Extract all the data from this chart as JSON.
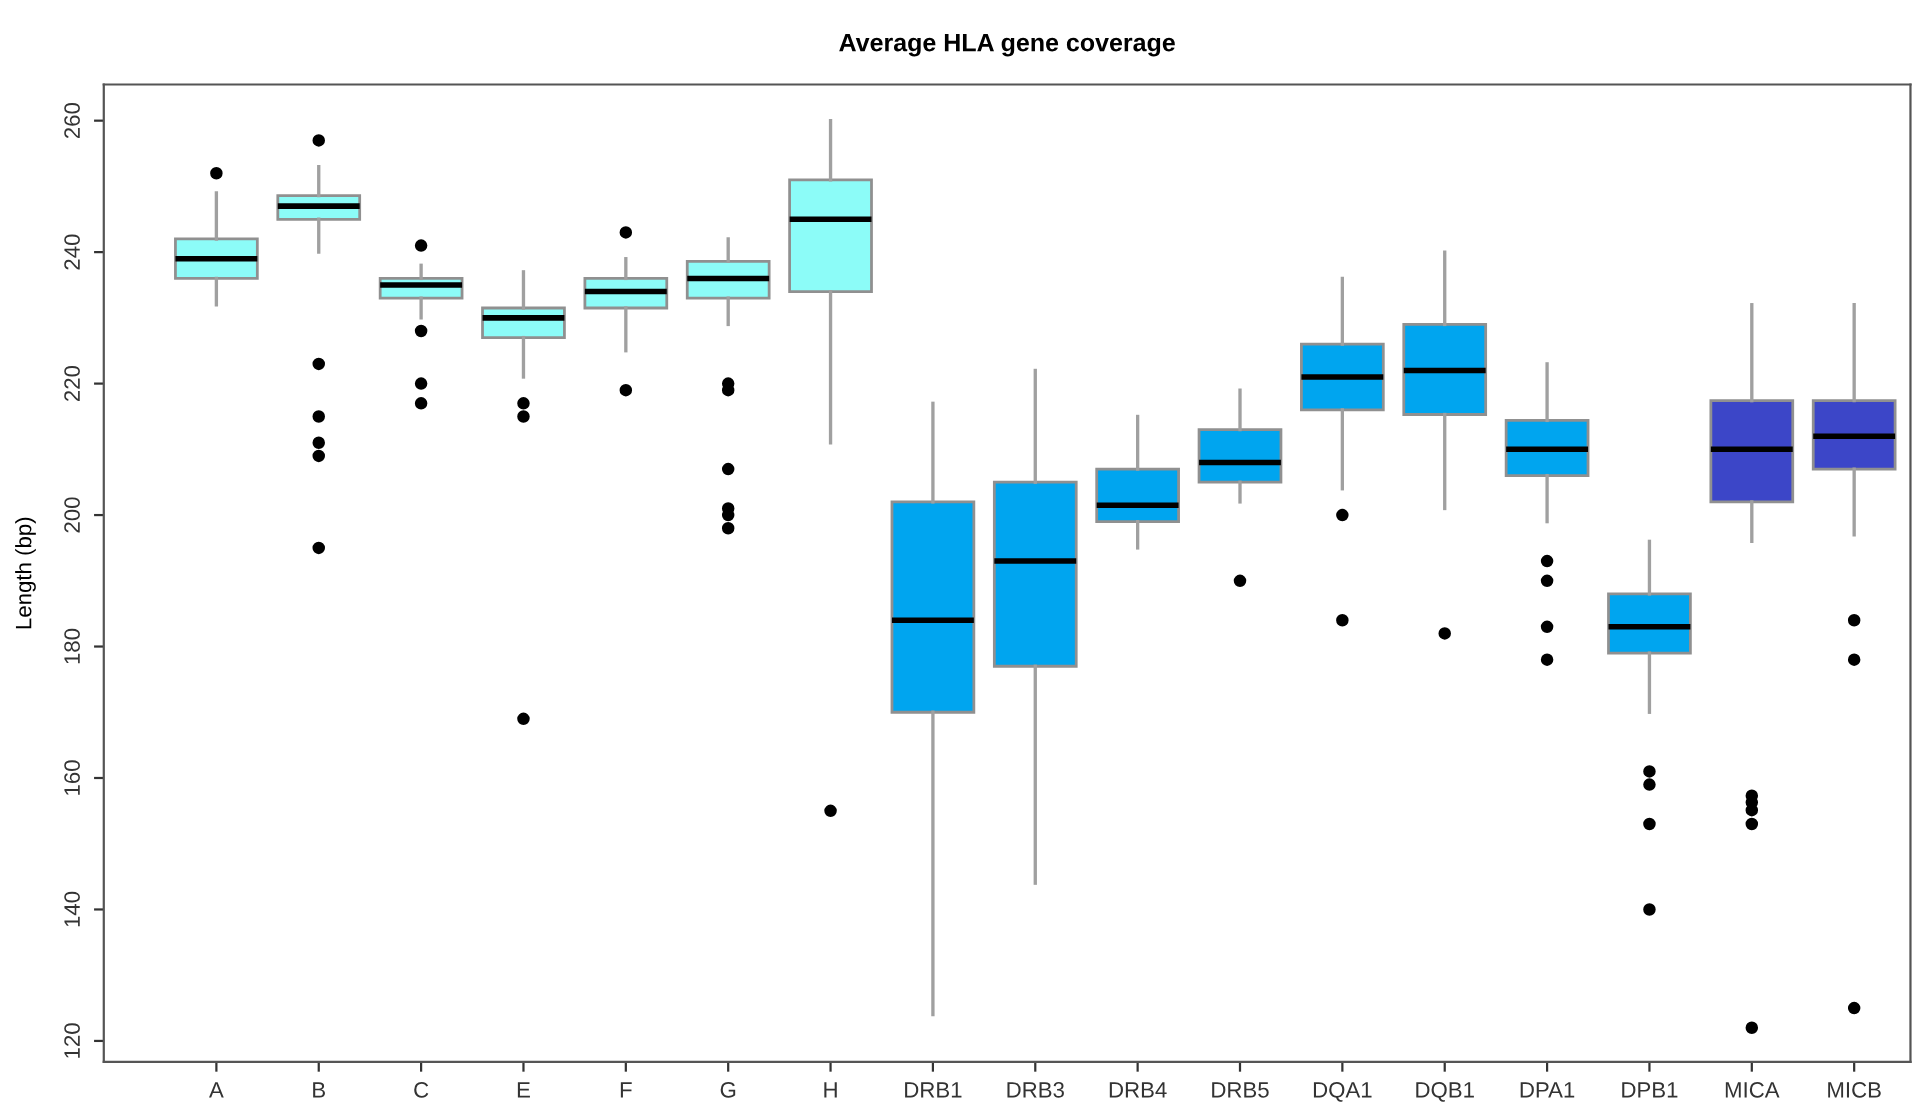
{
  "chart_data": {
    "type": "box",
    "title": "Average HLA gene coverage",
    "ylabel": "Length (bp)",
    "categories": [
      "A",
      "B",
      "C",
      "E",
      "F",
      "G",
      "H",
      "DRB1",
      "DRB3",
      "DRB4",
      "DRB5",
      "DQA1",
      "DQB1",
      "DPA1",
      "DPB1",
      "MICA",
      "MICB"
    ],
    "colors": [
      "#8cfcf8",
      "#8cfcf8",
      "#8cfcf8",
      "#8cfcf8",
      "#8cfcf8",
      "#8cfcf8",
      "#8cfcf8",
      "#00a5ef",
      "#00a5ef",
      "#00a5ef",
      "#00a5ef",
      "#00a5ef",
      "#00a5ef",
      "#00a5ef",
      "#00a5ef",
      "#3c46c8",
      "#3c46c8"
    ],
    "boxes": [
      {
        "low": 232,
        "q1": 236,
        "median": 239,
        "q3": 242,
        "high": 249,
        "outliers": [
          252
        ]
      },
      {
        "low": 240,
        "q1": 245,
        "median": 247,
        "q3": 248.6,
        "high": 253,
        "outliers": [
          257,
          223,
          215,
          211,
          209,
          195
        ]
      },
      {
        "low": 230,
        "q1": 233,
        "median": 235,
        "q3": 236,
        "high": 238,
        "outliers": [
          241,
          228,
          220,
          217
        ]
      },
      {
        "low": 221,
        "q1": 227,
        "median": 230,
        "q3": 231.5,
        "high": 237,
        "outliers": [
          217,
          215,
          169
        ]
      },
      {
        "low": 225,
        "q1": 231.5,
        "median": 234,
        "q3": 236,
        "high": 239,
        "outliers": [
          243,
          219
        ]
      },
      {
        "low": 229,
        "q1": 233,
        "median": 236,
        "q3": 238.6,
        "high": 242,
        "outliers": [
          220,
          219,
          207,
          201,
          200,
          198
        ]
      },
      {
        "low": 211,
        "q1": 234,
        "median": 245,
        "q3": 251,
        "high": 260,
        "outliers": [
          155
        ]
      },
      {
        "low": 124,
        "q1": 170,
        "median": 184,
        "q3": 202,
        "high": 217
      },
      {
        "low": 144,
        "q1": 177,
        "median": 193,
        "q3": 205,
        "high": 222
      },
      {
        "low": 195,
        "q1": 199,
        "median": 201.5,
        "q3": 207,
        "high": 215
      },
      {
        "low": 202,
        "q1": 205,
        "median": 208,
        "q3": 213,
        "high": 219,
        "outliers": [
          190
        ]
      },
      {
        "low": 204,
        "q1": 216,
        "median": 221,
        "q3": 226,
        "high": 236,
        "outliers": [
          200,
          184
        ]
      },
      {
        "low": 201,
        "q1": 215.3,
        "median": 222,
        "q3": 229,
        "high": 240,
        "outliers": [
          182
        ]
      },
      {
        "low": 199,
        "q1": 206,
        "median": 210,
        "q3": 214.4,
        "high": 223,
        "outliers": [
          193,
          190,
          183,
          178
        ]
      },
      {
        "low": 170,
        "q1": 179,
        "median": 183,
        "q3": 188,
        "high": 196,
        "outliers": [
          161,
          159,
          153,
          140
        ]
      },
      {
        "low": 196,
        "q1": 202,
        "median": 210,
        "q3": 217.4,
        "high": 232,
        "outliers": [
          157.3,
          156.3,
          155.1,
          153,
          122
        ]
      },
      {
        "low": 197,
        "q1": 207,
        "median": 212,
        "q3": 217.4,
        "high": 232,
        "outliers": [
          184,
          178,
          125
        ]
      }
    ],
    "ylim": [
      116.8,
      265.5
    ],
    "yticks": [
      120,
      140,
      160,
      180,
      200,
      220,
      240,
      260
    ],
    "grid": false,
    "legend": false
  }
}
